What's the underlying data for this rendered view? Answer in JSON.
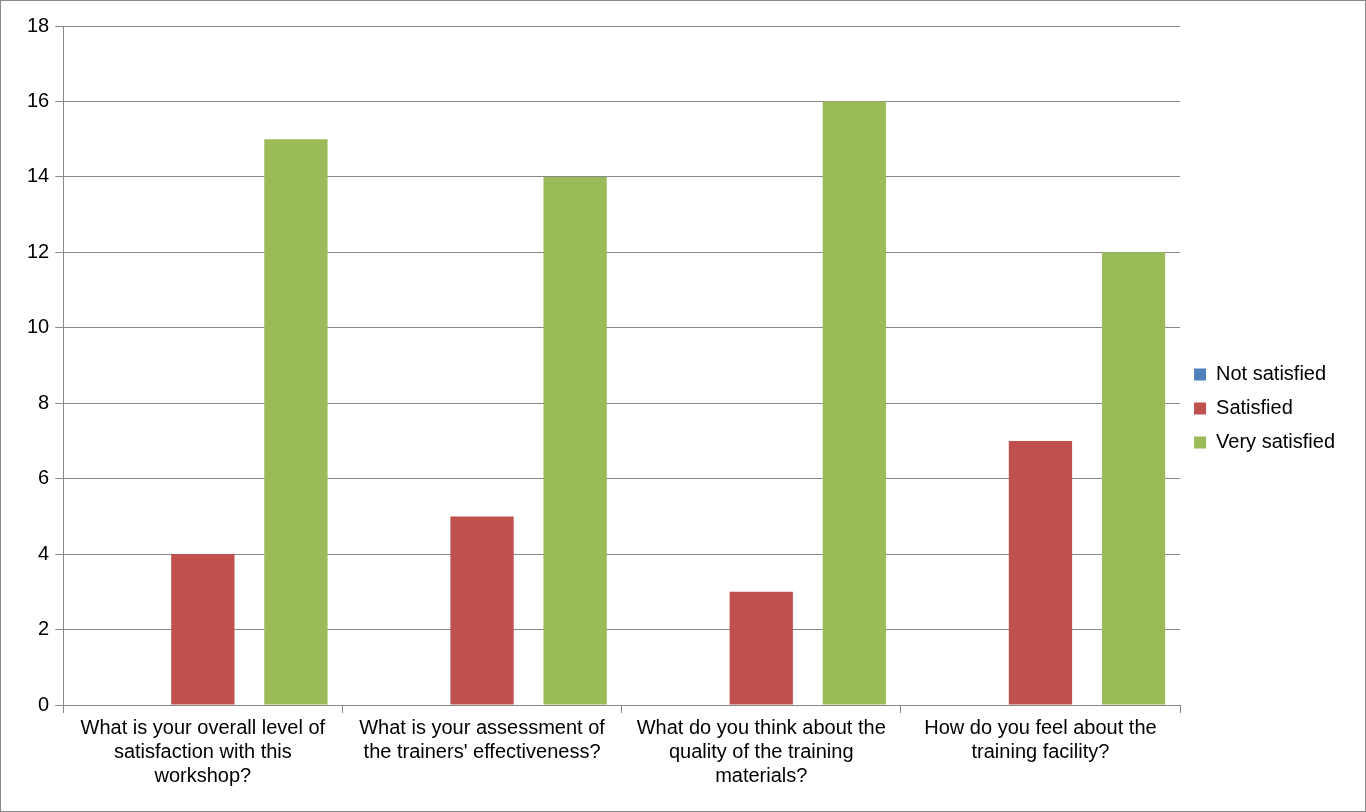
{
  "chart_data": {
    "type": "bar",
    "categories": [
      "What is your overall level of satisfaction with this workshop?",
      "What is your assessment of the trainers' effectiveness?",
      "What do you think about the quality of the training materials?",
      "How do you feel about the training facility?"
    ],
    "series": [
      {
        "name": "Not satisfied",
        "color": "#4f81bd",
        "values": [
          0,
          0,
          0,
          0
        ]
      },
      {
        "name": "Satisfied",
        "color": "#c0504d",
        "values": [
          4,
          5,
          3,
          7
        ]
      },
      {
        "name": "Very satisfied",
        "color": "#9bbb59",
        "values": [
          15,
          14,
          16,
          12
        ]
      }
    ],
    "ylim": [
      0,
      18
    ],
    "yticks": [
      0,
      2,
      4,
      6,
      8,
      10,
      12,
      14,
      16,
      18
    ],
    "grid": "y",
    "legend": "right"
  }
}
